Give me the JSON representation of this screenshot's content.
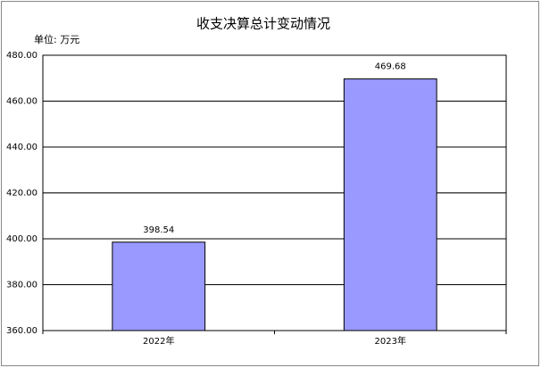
{
  "chart_data": {
    "type": "bar",
    "title": "收支决算总计变动情况",
    "unit_label": "单位: 万元",
    "categories": [
      "2022年",
      "2023年"
    ],
    "values": [
      398.54,
      469.68
    ],
    "color": "#9999ff",
    "ylim": [
      360,
      480
    ],
    "yticks": [
      {
        "value": 360,
        "label": "360.00"
      },
      {
        "value": 380,
        "label": "380.00"
      },
      {
        "value": 400,
        "label": "400.00"
      },
      {
        "value": 420,
        "label": "420.00"
      },
      {
        "value": 440,
        "label": "440.00"
      },
      {
        "value": 460,
        "label": "460.00"
      },
      {
        "value": 480,
        "label": "480.00"
      }
    ],
    "grid": true
  }
}
